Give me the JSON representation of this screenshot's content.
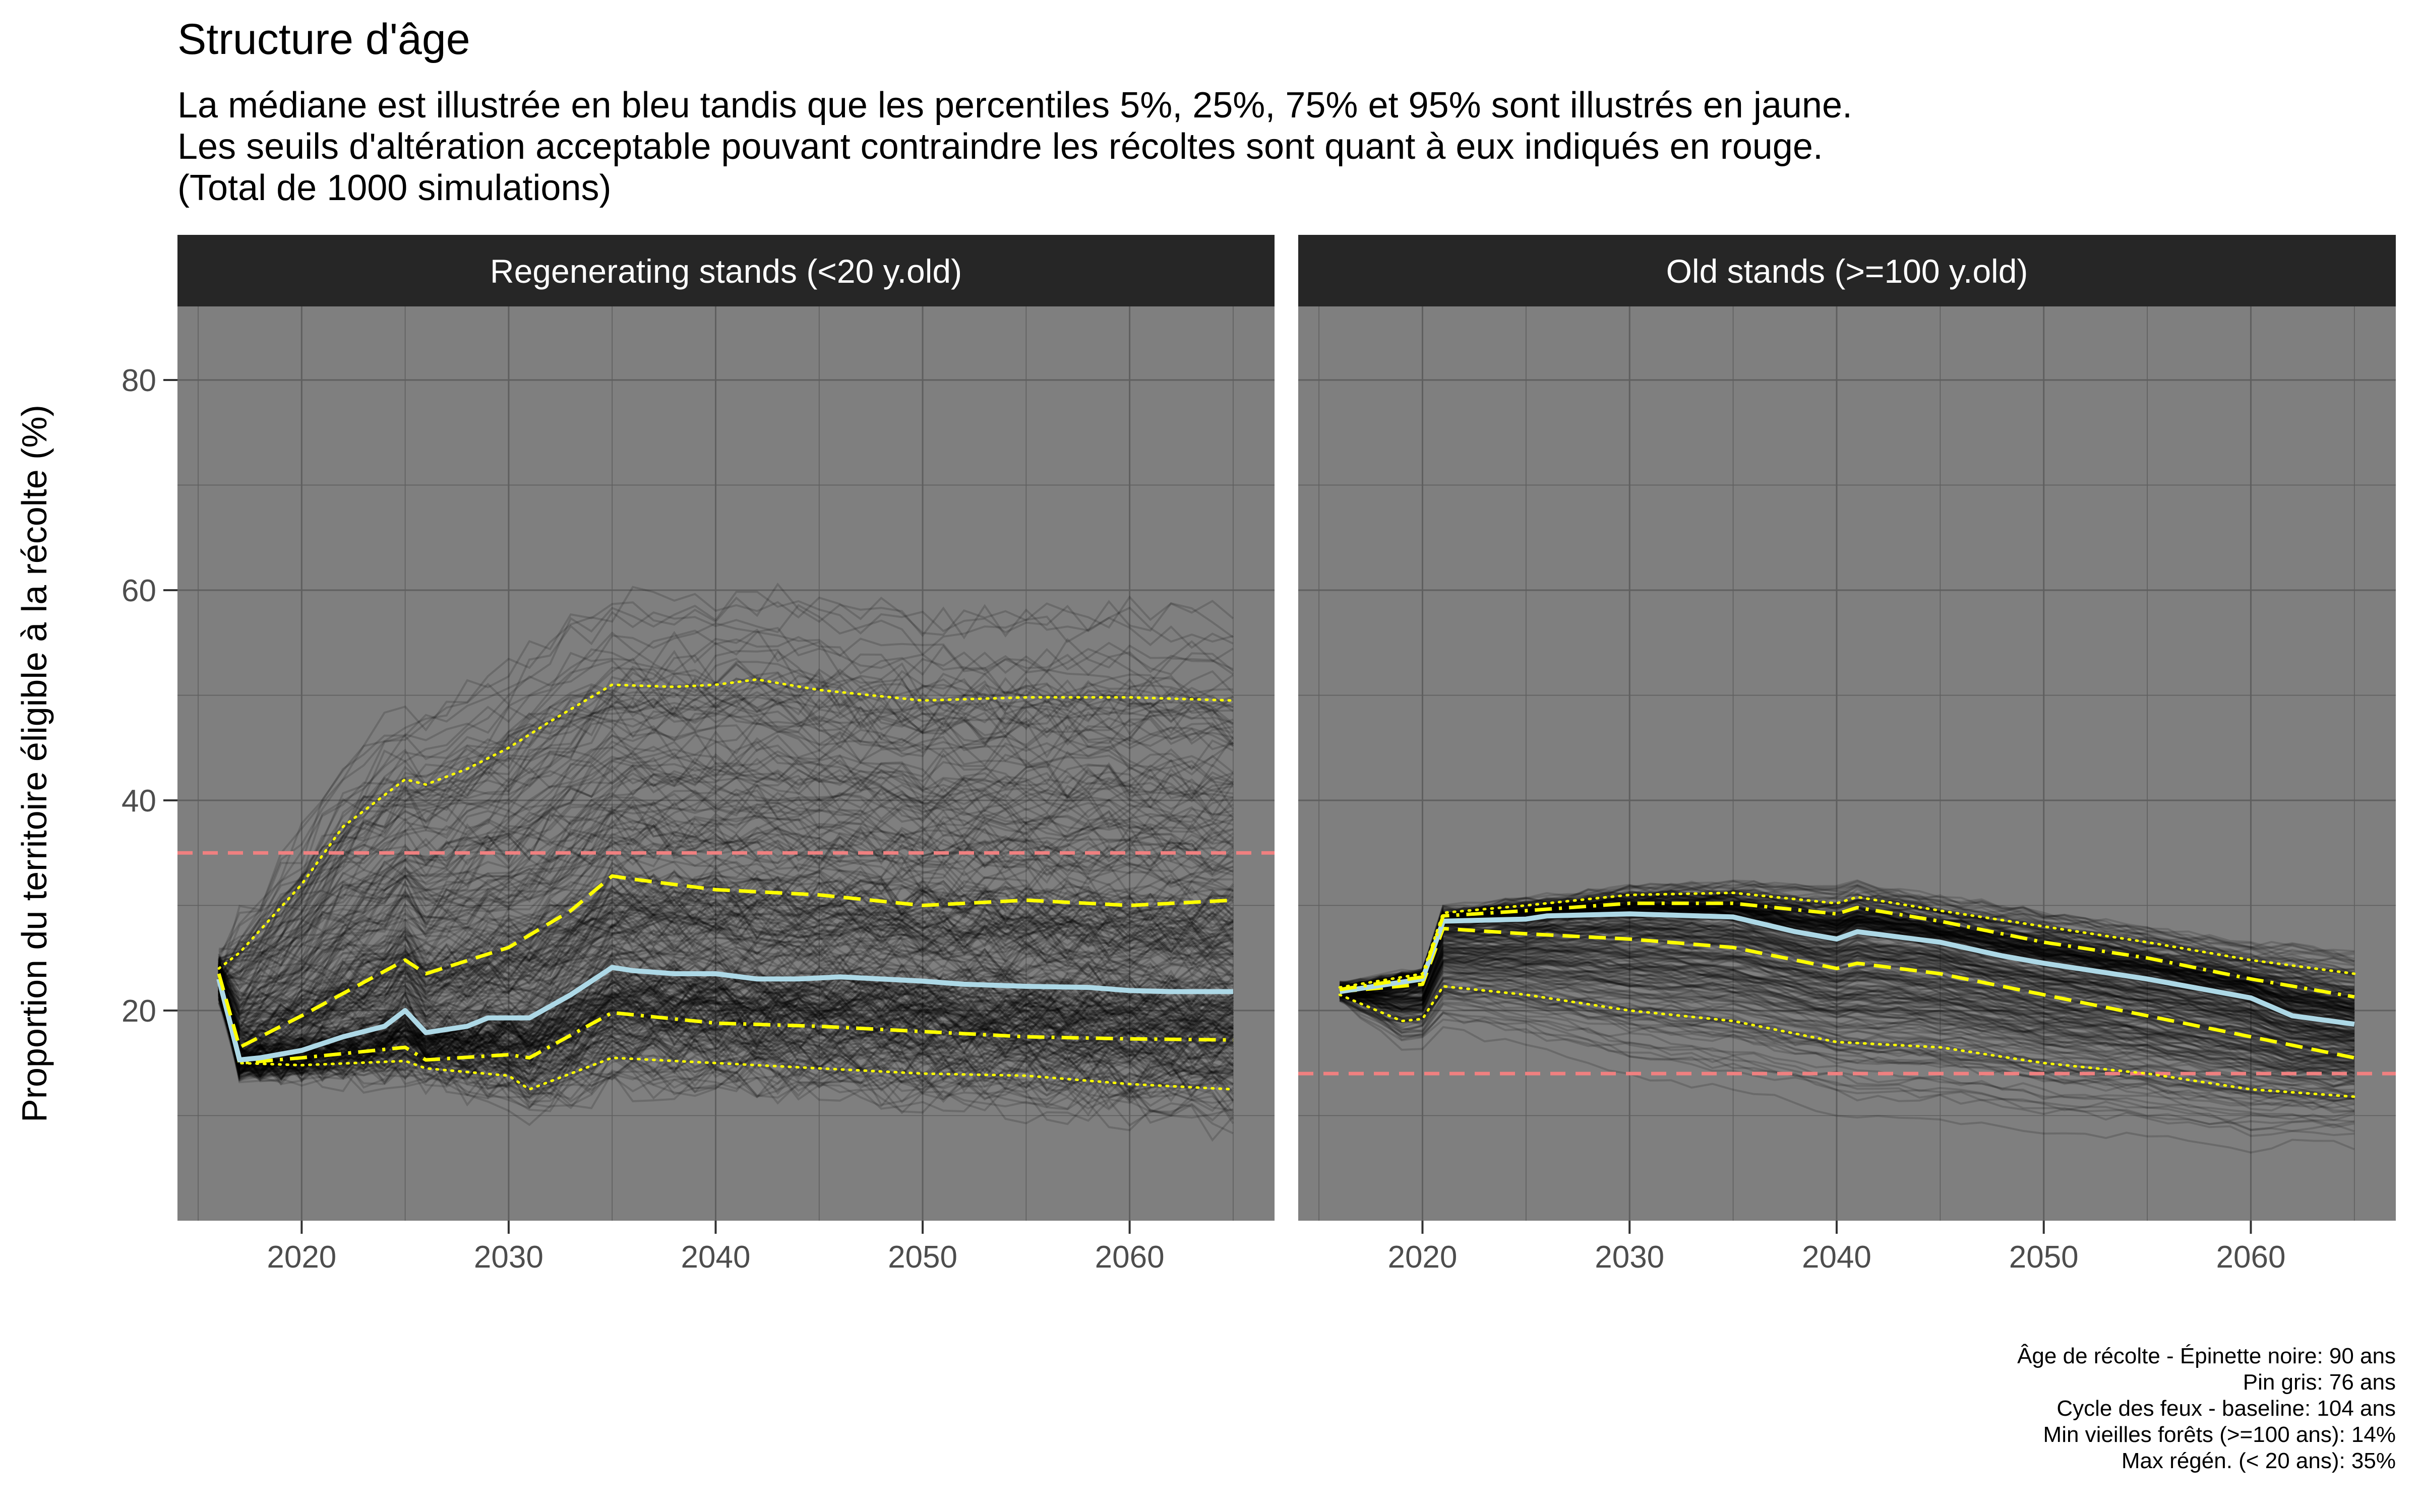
{
  "title": "Structure d'âge",
  "subtitle": [
    "La médiane est illustrée en bleu tandis que les percentiles 5%, 25%, 75% et 95% sont illustrés en jaune.",
    "Les seuils d'altération acceptable pouvant contraindre les récoltes sont quant à eux indiqués en rouge.",
    "(Total de 1000 simulations)"
  ],
  "caption": [
    "Âge de récolte - Épinette noire: 90 ans",
    "Pin gris: 76 ans",
    "Cycle des feux - baseline: 104 ans",
    "Min vieilles forêts (>=100 ans): 14%",
    "Max régén. (< 20 ans): 35%"
  ],
  "colors": {
    "panel_bg": "#7f7f7f",
    "strip_bg": "#262626",
    "strip_text": "#ffffff",
    "gridline": "#5f5f5f",
    "simulations": "#000000",
    "median": "#add8e6",
    "percentiles": "#ffff00",
    "threshold": "#f08080",
    "axis_text": "#4d4d4d"
  },
  "chart_data": {
    "type": "line",
    "ylabel": "Proportion du territoire éligible à la récolte (%)",
    "xlabel": "",
    "xlim": [
      2014,
      2067
    ],
    "ylim": [
      0,
      87
    ],
    "x_ticks": [
      2020,
      2030,
      2040,
      2050,
      2060
    ],
    "y_ticks": [
      20,
      40,
      60,
      80
    ],
    "simulation_count": 1000,
    "panels": [
      {
        "name": "Regenerating stands (<20 y.old)",
        "threshold": 35,
        "series": [
          {
            "name": "5%",
            "style": "dotted",
            "x": [
              2016,
              2017,
              2020,
              2025,
              2026,
              2030,
              2031,
              2035,
              2040,
              2045,
              2050,
              2055,
              2060,
              2065
            ],
            "y": [
              22.5,
              15.0,
              14.8,
              15.2,
              14.5,
              13.8,
              12.5,
              15.5,
              15.0,
              14.5,
              14.0,
              13.8,
              13.0,
              12.5
            ]
          },
          {
            "name": "25%",
            "style": "dashdot",
            "x": [
              2016,
              2017,
              2020,
              2025,
              2026,
              2030,
              2031,
              2035,
              2040,
              2045,
              2050,
              2055,
              2060,
              2065
            ],
            "y": [
              23.0,
              15.0,
              15.5,
              16.5,
              15.3,
              15.8,
              15.5,
              19.8,
              18.8,
              18.5,
              18.0,
              17.5,
              17.3,
              17.2
            ]
          },
          {
            "name": "Médiane",
            "style": "solid",
            "x": [
              2016,
              2017,
              2018,
              2020,
              2022,
              2024,
              2025,
              2026,
              2028,
              2029,
              2031,
              2033,
              2035,
              2036,
              2038,
              2040,
              2042,
              2044,
              2046,
              2048,
              2050,
              2052,
              2055,
              2058,
              2060,
              2062,
              2065
            ],
            "y": [
              23.0,
              15.3,
              15.5,
              16.2,
              17.5,
              18.5,
              20.0,
              17.9,
              18.5,
              19.3,
              19.3,
              21.5,
              24.1,
              23.8,
              23.5,
              23.5,
              23.0,
              23.0,
              23.2,
              23.0,
              22.8,
              22.5,
              22.3,
              22.2,
              21.9,
              21.8,
              21.8
            ]
          },
          {
            "name": "75%",
            "style": "dashed",
            "x": [
              2016,
              2017,
              2020,
              2025,
              2026,
              2030,
              2033,
              2035,
              2036,
              2040,
              2045,
              2050,
              2055,
              2060,
              2065
            ],
            "y": [
              23.5,
              16.5,
              19.5,
              24.8,
              23.5,
              26.0,
              29.5,
              32.8,
              32.5,
              31.5,
              31.0,
              30.0,
              30.5,
              30.0,
              30.5
            ]
          },
          {
            "name": "95%",
            "style": "dotted",
            "x": [
              2016,
              2017,
              2020,
              2022,
              2025,
              2026,
              2028,
              2030,
              2032,
              2035,
              2038,
              2040,
              2042,
              2045,
              2050,
              2055,
              2060,
              2065
            ],
            "y": [
              24.0,
              25.5,
              32.0,
              37.5,
              42.0,
              41.5,
              43.0,
              45.0,
              47.5,
              51.0,
              50.8,
              51.0,
              51.5,
              50.5,
              49.5,
              49.8,
              49.8,
              49.5
            ]
          }
        ]
      },
      {
        "name": "Old stands (>=100 y.old)",
        "threshold": 14,
        "series": [
          {
            "name": "5%",
            "style": "dotted",
            "x": [
              2016,
              2019,
              2020,
              2021,
              2025,
              2030,
              2035,
              2040,
              2045,
              2050,
              2055,
              2060,
              2065
            ],
            "y": [
              21.5,
              19.0,
              19.2,
              22.3,
              21.5,
              20.0,
              19.0,
              17.0,
              16.5,
              15.0,
              14.0,
              12.5,
              11.8
            ]
          },
          {
            "name": "25%",
            "style": "dashed",
            "x": [
              2016,
              2020,
              2021,
              2025,
              2030,
              2035,
              2040,
              2041,
              2045,
              2050,
              2055,
              2060,
              2065
            ],
            "y": [
              21.8,
              22.5,
              27.8,
              27.3,
              26.8,
              26.0,
              24.0,
              24.5,
              23.5,
              21.5,
              19.5,
              17.5,
              15.5
            ]
          },
          {
            "name": "Médiane",
            "style": "solid",
            "x": [
              2016,
              2020,
              2021,
              2025,
              2026,
              2030,
              2035,
              2038,
              2040,
              2041,
              2045,
              2048,
              2050,
              2055,
              2060,
              2062,
              2065
            ],
            "y": [
              21.8,
              23.0,
              28.5,
              28.7,
              29.0,
              29.2,
              28.9,
              27.5,
              26.8,
              27.5,
              26.5,
              25.2,
              24.5,
              23.0,
              21.2,
              19.5,
              18.7
            ]
          },
          {
            "name": "75%",
            "style": "dashdot",
            "x": [
              2016,
              2020,
              2021,
              2025,
              2030,
              2035,
              2040,
              2041,
              2045,
              2050,
              2055,
              2060,
              2065
            ],
            "y": [
              22.0,
              23.2,
              29.0,
              29.5,
              30.2,
              30.2,
              29.2,
              29.8,
              28.5,
              26.5,
              25.0,
              23.0,
              21.3
            ]
          },
          {
            "name": "95%",
            "style": "dotted",
            "x": [
              2016,
              2020,
              2021,
              2025,
              2030,
              2035,
              2040,
              2041,
              2045,
              2050,
              2055,
              2060,
              2065
            ],
            "y": [
              22.2,
              23.5,
              29.3,
              30.0,
              31.0,
              31.2,
              30.2,
              30.8,
              29.5,
              28.0,
              26.5,
              24.8,
              23.5
            ]
          }
        ]
      }
    ]
  }
}
